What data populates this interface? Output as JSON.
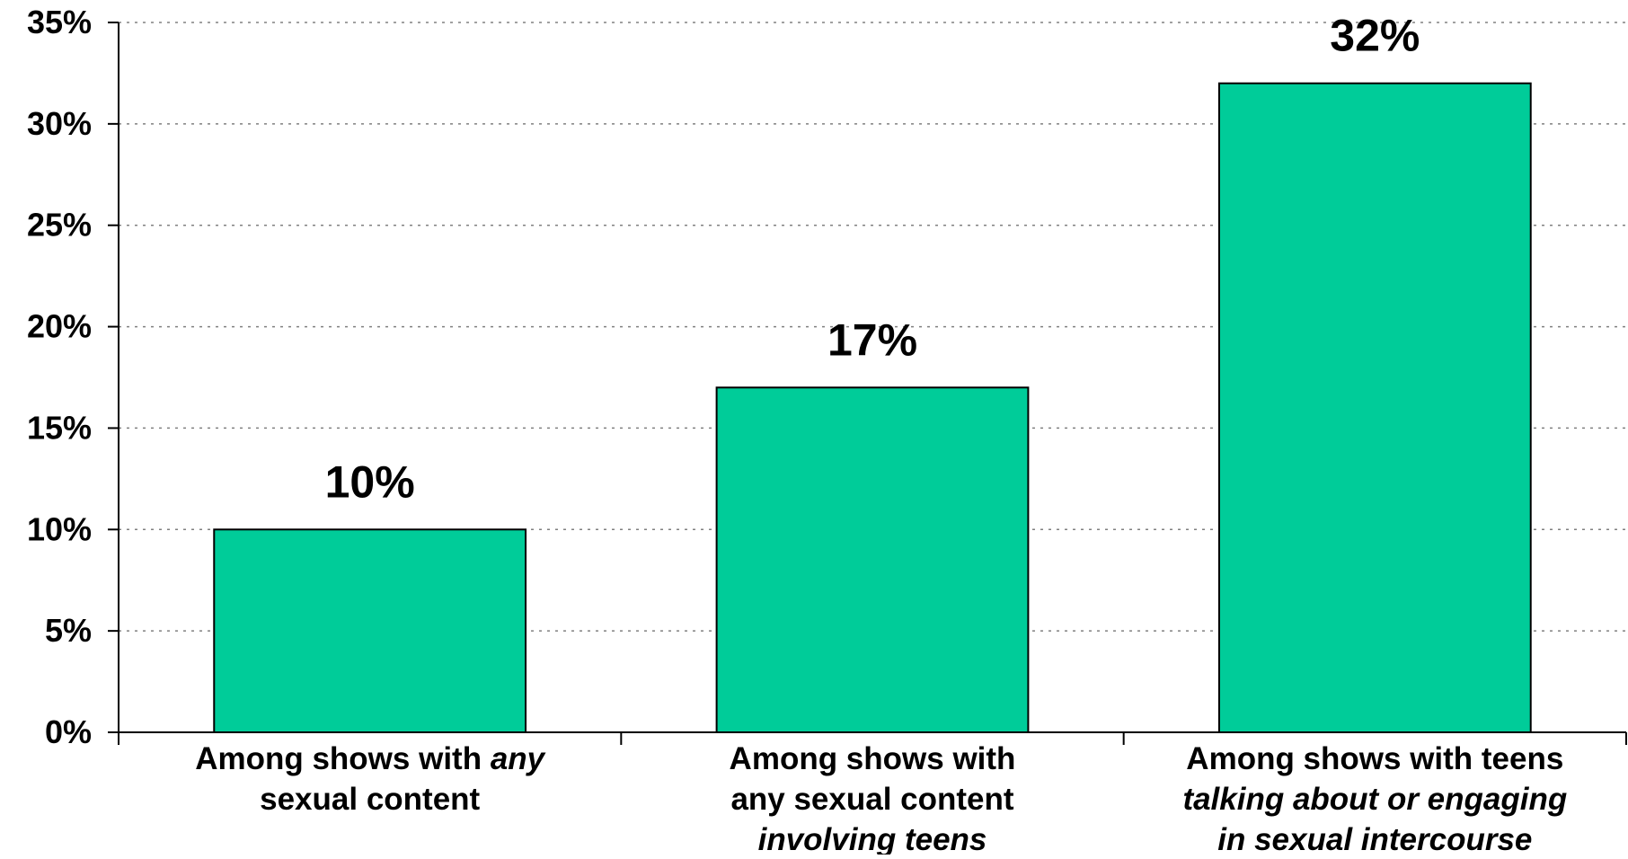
{
  "chart_data": {
    "type": "bar",
    "title": "",
    "xlabel": "",
    "ylabel": "",
    "ylim": [
      0,
      35
    ],
    "yticks": [
      0,
      5,
      10,
      15,
      20,
      25,
      30,
      35
    ],
    "ytick_labels": [
      "0%",
      "5%",
      "10%",
      "15%",
      "20%",
      "25%",
      "30%",
      "35%"
    ],
    "grid": "horizontal dotted",
    "categories": [
      {
        "lines": [
          [
            {
              "text": "Among shows with ",
              "italic": false
            },
            {
              "text": "any",
              "italic": true
            }
          ],
          [
            {
              "text": "sexual content",
              "italic": false
            }
          ]
        ]
      },
      {
        "lines": [
          [
            {
              "text": "Among shows with",
              "italic": false
            }
          ],
          [
            {
              "text": "any sexual content",
              "italic": false
            }
          ],
          [
            {
              "text": "involving teens",
              "italic": true
            }
          ]
        ]
      },
      {
        "lines": [
          [
            {
              "text": "Among shows with teens",
              "italic": false
            }
          ],
          [
            {
              "text": "talking about or engaging",
              "italic": true
            }
          ],
          [
            {
              "text": "in sexual intercourse",
              "italic": true
            }
          ]
        ]
      }
    ],
    "values": [
      10,
      17,
      32
    ],
    "value_labels": [
      "10%",
      "17%",
      "32%"
    ],
    "bar_color": "#00CC99"
  }
}
